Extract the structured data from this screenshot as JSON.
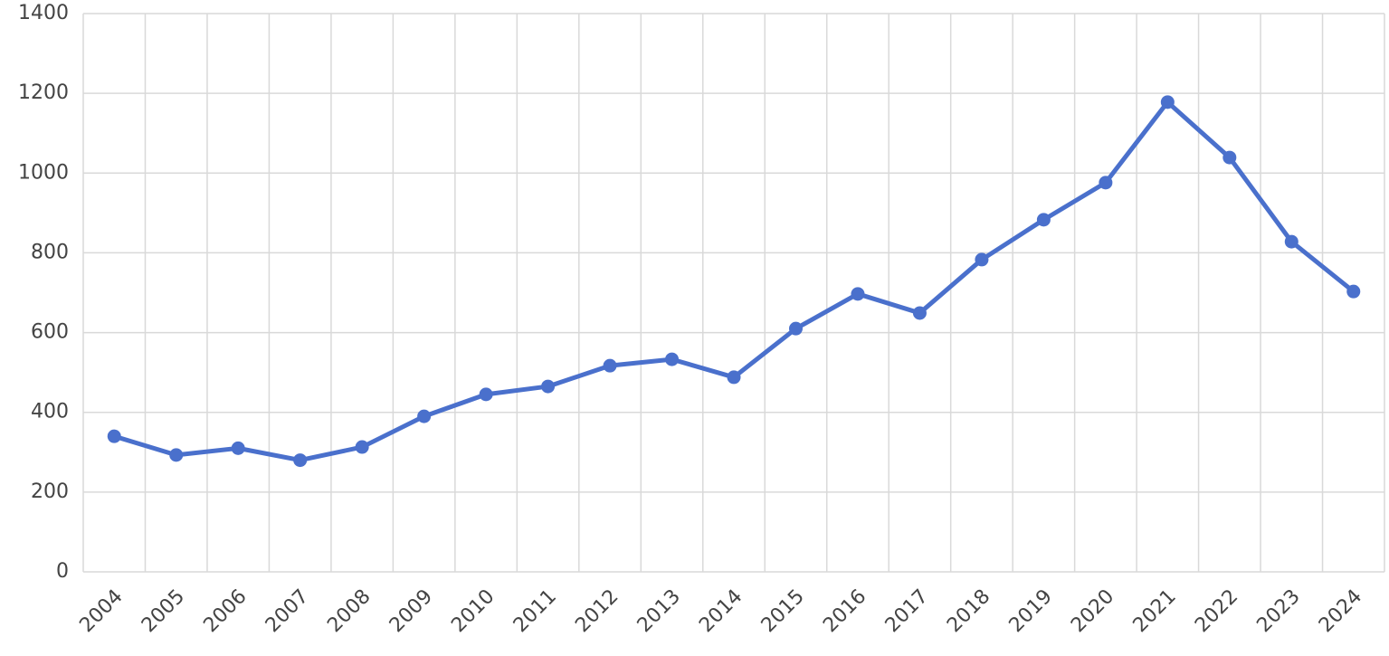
{
  "chart_data": {
    "type": "line",
    "categories": [
      "2004",
      "2005",
      "2006",
      "2007",
      "2008",
      "2009",
      "2010",
      "2011",
      "2012",
      "2013",
      "2014",
      "2015",
      "2016",
      "2017",
      "2018",
      "2019",
      "2020",
      "2021",
      "2022",
      "2023",
      "2024"
    ],
    "series": [
      {
        "color": "#4a70cc",
        "values": [
          340,
          293,
          310,
          280,
          313,
          390,
          445,
          465,
          517,
          533,
          488,
          610,
          697,
          649,
          783,
          883,
          976,
          1178,
          1039,
          828,
          703
        ]
      }
    ],
    "ylim": [
      0,
      1400
    ],
    "yticks": [
      0,
      200,
      400,
      600,
      800,
      1000,
      1200,
      1400
    ],
    "grid": true
  }
}
